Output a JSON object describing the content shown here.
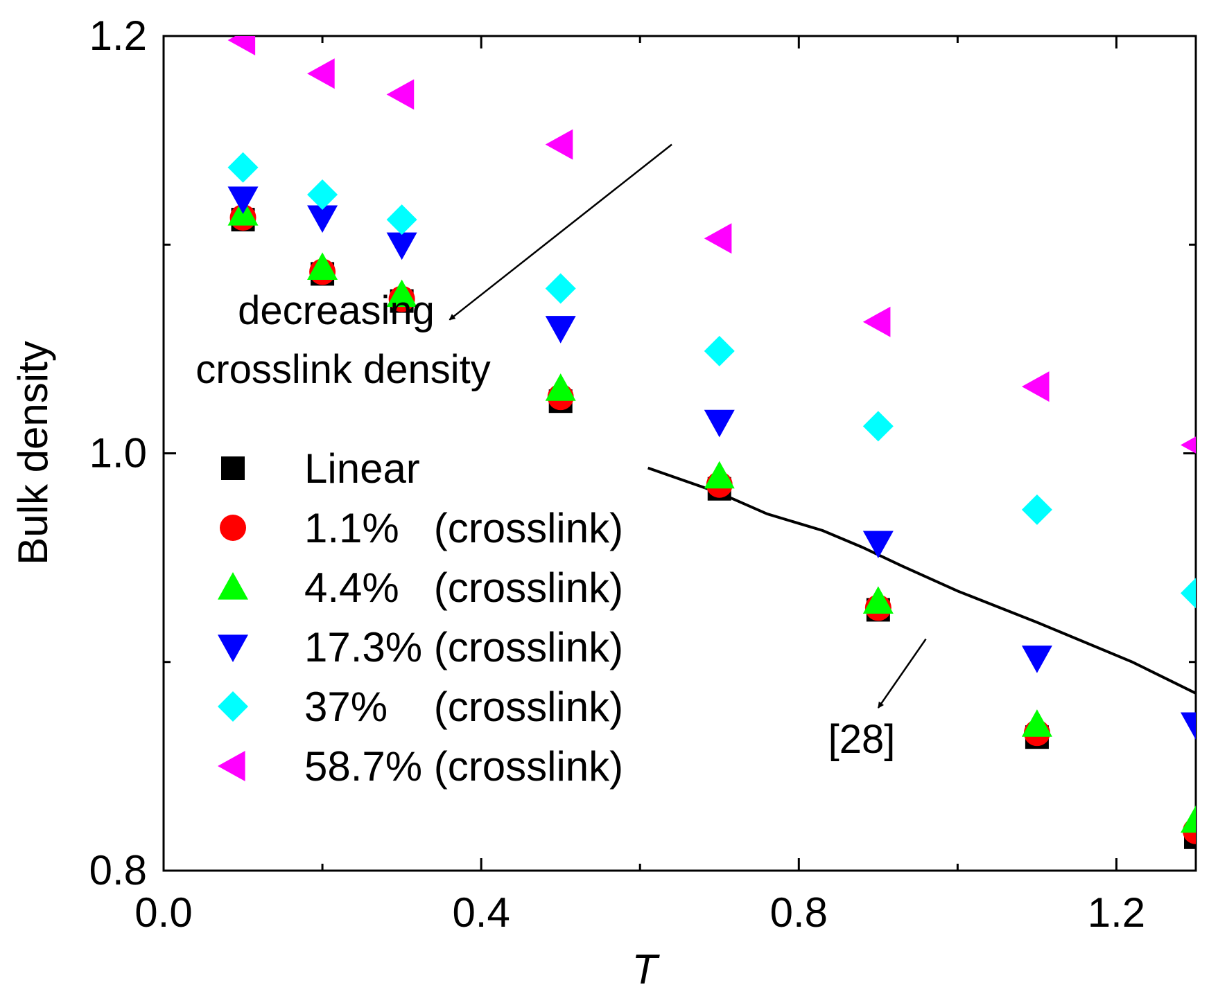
{
  "chart_data": {
    "type": "scatter",
    "title": "",
    "xlabel": "T",
    "ylabel": "Bulk density",
    "xlim": [
      0.0,
      1.3
    ],
    "ylim": [
      0.8,
      1.2
    ],
    "x": [
      0.1,
      0.2,
      0.3,
      0.5,
      0.7,
      0.9,
      1.1,
      1.3
    ],
    "x_tick_labels": [
      "0.0",
      "0.4",
      "0.8",
      "1.2"
    ],
    "y_tick_labels": [
      "0.8",
      "1.0",
      "1.2"
    ],
    "grid": false,
    "legend_position": "lower-left",
    "series": [
      {
        "name": "Linear",
        "marker": "square",
        "color": "#000000",
        "values": [
          1.112,
          1.086,
          1.073,
          1.025,
          0.983,
          0.925,
          0.864,
          0.816
        ]
      },
      {
        "name": "1.1%   (crosslink)",
        "marker": "circle",
        "color": "#ff0000",
        "values": [
          1.113,
          1.087,
          1.074,
          1.027,
          0.985,
          0.926,
          0.866,
          0.819
        ]
      },
      {
        "name": "4.4%   (crosslink)",
        "marker": "triangle-up",
        "color": "#00ff00",
        "values": [
          1.115,
          1.089,
          1.076,
          1.031,
          0.989,
          0.929,
          0.87,
          0.824
        ]
      },
      {
        "name": "17.3% (crosslink)",
        "marker": "triangle-down",
        "color": "#0000ff",
        "values": [
          1.122,
          1.113,
          1.1,
          1.06,
          1.015,
          0.957,
          0.902,
          0.87
        ]
      },
      {
        "name": "37%    (crosslink)",
        "marker": "diamond",
        "color": "#00ffff",
        "values": [
          1.137,
          1.124,
          1.112,
          1.079,
          1.049,
          1.013,
          0.973,
          0.933
        ]
      },
      {
        "name": "58.7% (crosslink)",
        "marker": "triangle-left",
        "color": "#ff00ff",
        "values": [
          1.198,
          1.182,
          1.172,
          1.148,
          1.103,
          1.063,
          1.032,
          1.004
        ]
      }
    ],
    "reference_line": {
      "label": "[28]",
      "x": [
        0.61,
        0.7,
        0.76,
        0.83,
        0.88,
        0.93,
        1.0,
        1.1,
        1.22,
        1.3
      ],
      "values": [
        0.993,
        0.981,
        0.971,
        0.963,
        0.955,
        0.946,
        0.934,
        0.919,
        0.9,
        0.885
      ]
    },
    "annotations": [
      {
        "text_line1": "decreasing",
        "text_line2": "crosslink density",
        "arrow_from": [
          0.64,
          1.148
        ],
        "arrow_to": [
          0.36,
          1.064
        ]
      },
      {
        "text": "[28]",
        "arrow_from": [
          0.96,
          0.911
        ],
        "arrow_to": [
          0.9,
          0.878
        ]
      }
    ]
  }
}
